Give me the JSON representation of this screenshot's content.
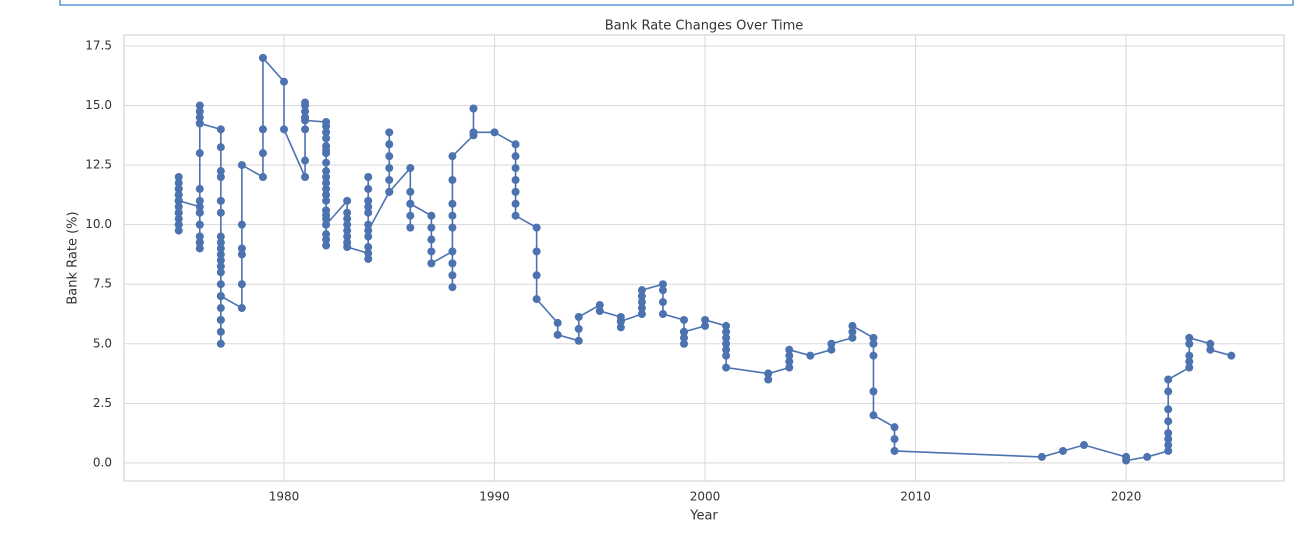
{
  "chart_data": {
    "type": "line",
    "title": "Bank Rate Changes Over Time",
    "xlabel": "Year",
    "ylabel": "Bank Rate (%)",
    "color": "#4c72b0",
    "grid": true,
    "xlim": [
      1972.4,
      2027.5
    ],
    "ylim": [
      -0.76,
      17.96
    ],
    "xticks": [
      1980,
      1990,
      2000,
      2010,
      2020
    ],
    "yticks": [
      {
        "value": 0,
        "label": "0.0"
      },
      2.5,
      {
        "value": 5,
        "label": "5.0"
      },
      7.5,
      {
        "value": 10,
        "label": "10.0"
      },
      12.5,
      {
        "value": 15,
        "label": "15.0"
      },
      17.5
    ],
    "x": [
      1975,
      1975,
      1975,
      1975,
      1975,
      1975,
      1975,
      1975,
      1975,
      1975,
      1975,
      1975,
      1975,
      1975,
      1975,
      1975,
      1976,
      1976,
      1976,
      1976,
      1976,
      1976,
      1976,
      1976,
      1976,
      1976,
      1976,
      1976,
      1976,
      1976,
      1976,
      1976,
      1976,
      1976,
      1977,
      1977,
      1977,
      1977,
      1977,
      1977,
      1977,
      1977,
      1977,
      1977,
      1977,
      1977,
      1977,
      1977,
      1977,
      1977,
      1977,
      1977,
      1977,
      1977,
      1977,
      1978,
      1978,
      1978,
      1978,
      1978,
      1978,
      1979,
      1979,
      1979,
      1979,
      1980,
      1980,
      1981,
      1981,
      1981,
      1981,
      1981,
      1981,
      1981,
      1981,
      1982,
      1982,
      1982,
      1982,
      1982,
      1982,
      1982,
      1982,
      1982,
      1982,
      1982,
      1982,
      1982,
      1982,
      1982,
      1982,
      1982,
      1982,
      1982,
      1982,
      1982,
      1982,
      1983,
      1983,
      1983,
      1983,
      1983,
      1983,
      1983,
      1983,
      1984,
      1984,
      1984,
      1984,
      1984,
      1984,
      1984,
      1984,
      1984,
      1984,
      1984,
      1985,
      1985,
      1985,
      1985,
      1985,
      1985,
      1985,
      1986,
      1986,
      1986,
      1986,
      1986,
      1986,
      1987,
      1987,
      1987,
      1987,
      1987,
      1988,
      1988,
      1988,
      1988,
      1988,
      1988,
      1988,
      1988,
      1988,
      1989,
      1989,
      1989,
      1990,
      1991,
      1991,
      1991,
      1991,
      1991,
      1991,
      1991,
      1992,
      1992,
      1992,
      1992,
      1993,
      1993,
      1994,
      1994,
      1994,
      1995,
      1995,
      1996,
      1996,
      1996,
      1996,
      1997,
      1997,
      1997,
      1997,
      1997,
      1998,
      1998,
      1998,
      1998,
      1999,
      1999,
      1999,
      1999,
      1999,
      2000,
      2000,
      2001,
      2001,
      2001,
      2001,
      2001,
      2001,
      2001,
      2003,
      2003,
      2003,
      2004,
      2004,
      2004,
      2004,
      2005,
      2006,
      2006,
      2007,
      2007,
      2007,
      2008,
      2008,
      2008,
      2008,
      2008,
      2009,
      2009,
      2009,
      2016,
      2017,
      2018,
      2020,
      2020,
      2021,
      2022,
      2022,
      2022,
      2022,
      2022,
      2022,
      2022,
      2022,
      2023,
      2023,
      2023,
      2023,
      2023,
      2024,
      2024,
      2025
    ],
    "values": [
      11.5,
      11.25,
      11,
      10.75,
      10.5,
      10.25,
      10,
      9.75,
      10,
      10.5,
      11,
      11.5,
      12,
      11.75,
      11.25,
      11,
      10.75,
      10.5,
      10,
      9.5,
      9.25,
      9,
      9.25,
      9.5,
      10,
      10.5,
      11,
      11.5,
      13,
      14.25,
      15,
      14.75,
      14.5,
      14.25,
      14,
      13.25,
      12.25,
      12,
      11,
      10.5,
      9.5,
      9.25,
      9,
      8.75,
      8.5,
      8.25,
      8,
      7.5,
      7,
      6.5,
      6,
      5.5,
      5,
      6,
      7,
      6.5,
      7.5,
      9,
      8.75,
      10,
      12.5,
      12,
      13,
      14,
      17,
      16,
      14,
      12,
      12.69,
      14,
      14.5,
      14.75,
      15,
      15.125,
      14.375,
      14.31,
      14.125,
      13.875,
      13.625,
      13.3,
      13.125,
      13,
      12.6,
      12.25,
      12,
      11.75,
      11.5,
      11.25,
      11,
      10.6,
      10.4,
      10.25,
      10,
      9.6,
      9.375,
      9.125,
      10,
      11,
      10.5,
      10.25,
      10,
      9.75,
      9.5,
      9.25,
      9.06,
      8.8,
      8.56,
      9.06,
      9.5,
      10,
      10.5,
      10.75,
      11,
      11.5,
      12,
      9.75,
      11.375,
      11.875,
      12.375,
      12.875,
      13.375,
      13.875,
      11.375,
      12.375,
      11.375,
      10.875,
      10.375,
      9.875,
      10.875,
      10.375,
      9.875,
      9.375,
      8.875,
      8.375,
      8.875,
      8.375,
      7.875,
      7.375,
      9.875,
      10.375,
      10.875,
      11.875,
      12.875,
      13.75,
      14.875,
      13.875,
      13.875,
      13.375,
      12.875,
      12.375,
      11.875,
      11.375,
      10.875,
      10.375,
      9.875,
      8.875,
      7.875,
      6.875,
      5.875,
      5.375,
      5.125,
      5.625,
      6.125,
      6.625,
      6.375,
      6.125,
      5.94,
      5.69,
      5.94,
      6.25,
      6.5,
      6.75,
      7,
      7.25,
      7.5,
      7.25,
      6.75,
      6.25,
      6,
      5.5,
      5.25,
      5,
      5.5,
      5.75,
      6,
      5.75,
      5.5,
      5.25,
      5,
      4.75,
      4.5,
      4,
      3.75,
      3.5,
      3.75,
      4,
      4.25,
      4.5,
      4.75,
      4.5,
      4.75,
      5,
      5.25,
      5.5,
      5.75,
      5.25,
      5,
      4.5,
      3,
      2,
      1.5,
      1,
      0.5,
      0.25,
      0.5,
      0.75,
      0.25,
      0.1,
      0.25,
      0.5,
      0.75,
      1,
      1.25,
      1.75,
      2.25,
      3,
      3.5,
      4,
      4.25,
      4.5,
      5,
      5.25,
      5,
      4.75,
      4.5
    ]
  }
}
